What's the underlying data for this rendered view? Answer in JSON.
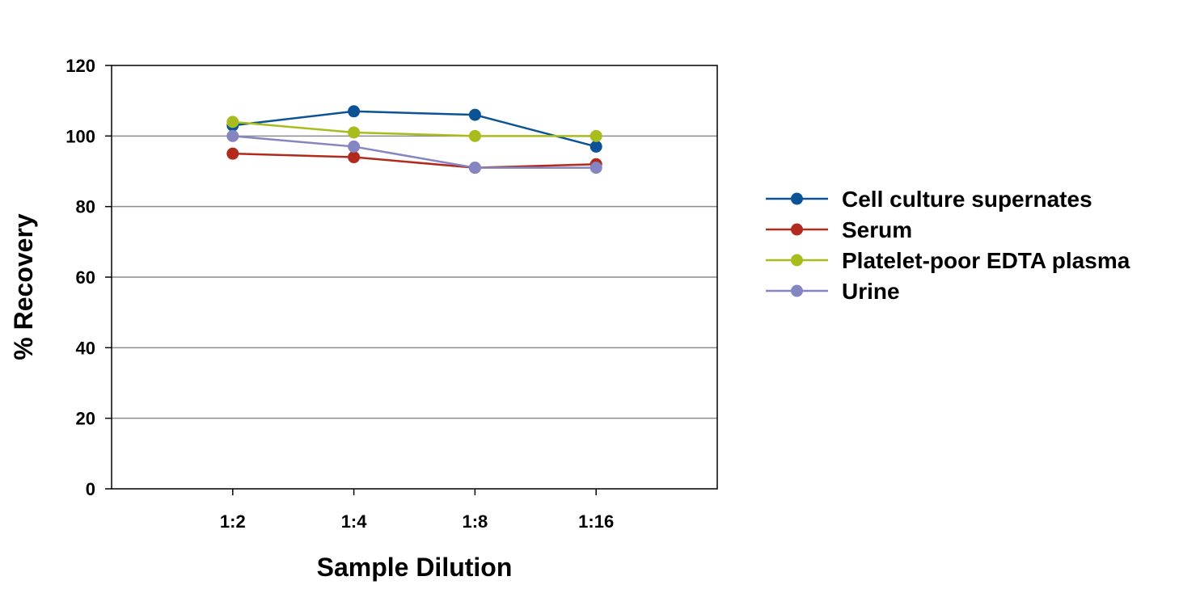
{
  "chart_data": {
    "type": "line",
    "title": "",
    "xlabel": "Sample Dilution",
    "ylabel": "% Recovery",
    "categories": [
      "1:2",
      "1:4",
      "1:8",
      "1:16"
    ],
    "ylim": [
      0,
      120
    ],
    "yticks": [
      0,
      20,
      40,
      60,
      80,
      100,
      120
    ],
    "grid": "horizontal",
    "legend_position": "right",
    "series": [
      {
        "name": "Cell culture supernates",
        "color": "#0B5394",
        "values": [
          103,
          107,
          106,
          97
        ]
      },
      {
        "name": "Serum",
        "color": "#B22A1E",
        "values": [
          95,
          94,
          91,
          92
        ]
      },
      {
        "name": "Platelet-poor EDTA plasma",
        "color": "#A8BC1E",
        "values": [
          104,
          101,
          100,
          100
        ]
      },
      {
        "name": "Urine",
        "color": "#8585C2",
        "values": [
          100,
          97,
          91,
          91
        ]
      }
    ]
  }
}
